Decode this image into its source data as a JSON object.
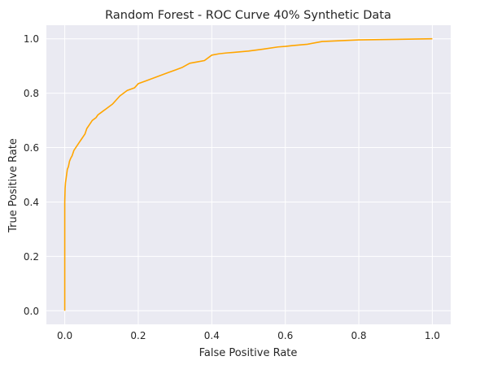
{
  "chart_data": {
    "type": "line",
    "title": "Random Forest - ROC Curve 40% Synthetic Data",
    "xlabel": "False Positive Rate",
    "ylabel": "True Positive Rate",
    "xlim": [
      -0.05,
      1.05
    ],
    "ylim": [
      -0.05,
      1.05
    ],
    "xticks": [
      0.0,
      0.2,
      0.4,
      0.6,
      0.8,
      1.0
    ],
    "yticks": [
      0.0,
      0.2,
      0.4,
      0.6,
      0.8,
      1.0
    ],
    "xtick_labels": [
      "0.0",
      "0.2",
      "0.4",
      "0.6",
      "0.8",
      "1.0"
    ],
    "ytick_labels": [
      "0.0",
      "0.2",
      "0.4",
      "0.6",
      "0.8",
      "1.0"
    ],
    "grid": true,
    "background": "#eaeaf2",
    "grid_color": "#ffffff",
    "series": [
      {
        "color": "#ffa500",
        "x": [
          0.0,
          0.0,
          0.001,
          0.002,
          0.004,
          0.007,
          0.01,
          0.013,
          0.016,
          0.02,
          0.025,
          0.03,
          0.035,
          0.04,
          0.045,
          0.05,
          0.055,
          0.06,
          0.065,
          0.07,
          0.075,
          0.08,
          0.085,
          0.09,
          0.1,
          0.11,
          0.12,
          0.13,
          0.14,
          0.15,
          0.16,
          0.17,
          0.18,
          0.19,
          0.2,
          0.21,
          0.22,
          0.24,
          0.26,
          0.28,
          0.3,
          0.32,
          0.34,
          0.36,
          0.38,
          0.4,
          0.42,
          0.44,
          0.46,
          0.5,
          0.54,
          0.58,
          0.6,
          0.62,
          0.66,
          0.7,
          0.75,
          0.8,
          0.9,
          1.0
        ],
        "y": [
          0.0,
          0.4,
          0.45,
          0.47,
          0.49,
          0.52,
          0.53,
          0.55,
          0.56,
          0.57,
          0.59,
          0.6,
          0.61,
          0.62,
          0.63,
          0.64,
          0.65,
          0.67,
          0.68,
          0.69,
          0.7,
          0.705,
          0.71,
          0.72,
          0.73,
          0.74,
          0.75,
          0.76,
          0.775,
          0.79,
          0.8,
          0.81,
          0.815,
          0.82,
          0.835,
          0.84,
          0.845,
          0.855,
          0.865,
          0.875,
          0.885,
          0.895,
          0.91,
          0.915,
          0.92,
          0.94,
          0.945,
          0.948,
          0.95,
          0.955,
          0.962,
          0.97,
          0.972,
          0.975,
          0.98,
          0.99,
          0.993,
          0.996,
          0.998,
          1.0
        ]
      }
    ]
  }
}
